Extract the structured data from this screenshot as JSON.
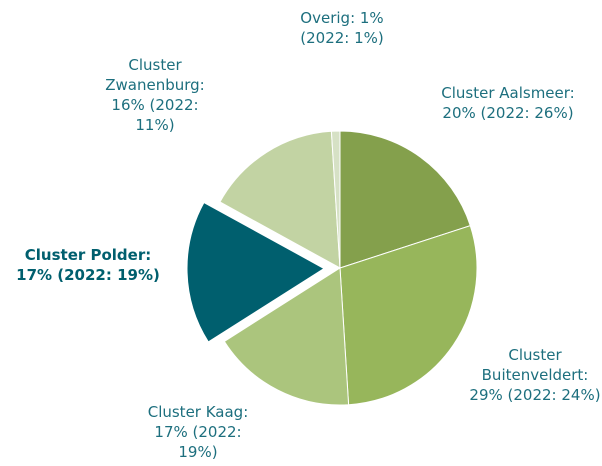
{
  "chart_data": {
    "type": "pie",
    "values": [
      20,
      29,
      17,
      17,
      16,
      1
    ],
    "value_labels": [
      "Cluster Aalsmeer: 20% (2022: 26%)",
      "Cluster Buitenveldert: 29% (2022: 24%)",
      "Cluster Kaag: 17% (2022: 19%)",
      "Cluster Polder: 17% (2022: 19%)",
      "Cluster Zwanenburg: 16% (2022: 11%)",
      "Overig: 1% (2022: 1%)"
    ],
    "colors": [
      "#84a04c",
      "#97b65b",
      "#abc57d",
      "#005f6e",
      "#c2d3a3",
      "#d6e1c5"
    ],
    "highlight": 3
  }
}
